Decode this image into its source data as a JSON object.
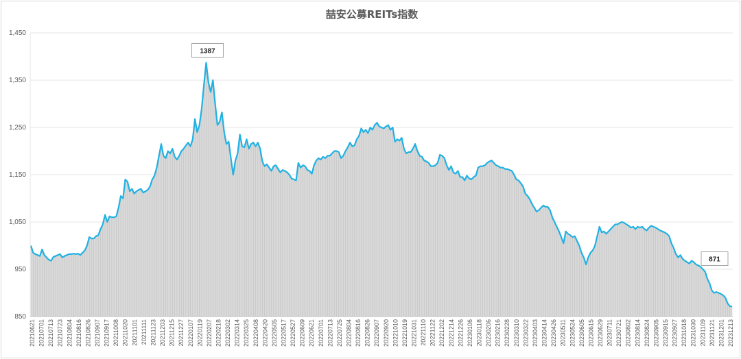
{
  "chart_data": {
    "type": "area",
    "title": "喆安公募REITs指数",
    "xlabel": "",
    "ylabel": "",
    "ylim": [
      850,
      1450
    ],
    "y_ticks": [
      850,
      950,
      1050,
      1150,
      1250,
      1350,
      1450
    ],
    "y_tick_labels": [
      "850",
      "950",
      "1,050",
      "1,150",
      "1,250",
      "1,350",
      "1,450"
    ],
    "grid": true,
    "legend": "none",
    "colors": {
      "line": "#21b1e3",
      "fill": "#d9d9d9",
      "grid": "#e6e6e6",
      "drop_lines": "#a6a6a6"
    },
    "x_tick_labels": [
      "20210621",
      "20210701",
      "20210713",
      "20210723",
      "20210804",
      "20210816",
      "20210826",
      "20210907",
      "20210917",
      "20211008",
      "20211020",
      "20211101",
      "20211111",
      "20211123",
      "20211203",
      "20211215",
      "20211227",
      "20220107",
      "20220119",
      "20220207",
      "20220218",
      "20220302",
      "20220314",
      "20220325",
      "20220408",
      "20220420",
      "20220505",
      "20220517",
      "20220527",
      "20220609",
      "20220621",
      "20220701",
      "20220713",
      "20220725",
      "20220804",
      "20220816",
      "20220826",
      "20220907",
      "20220920",
      "20221010",
      "20221019",
      "20221031",
      "20221110",
      "20221122",
      "20221202",
      "20221214",
      "20221226",
      "20230106",
      "20230118",
      "20230206",
      "20230216",
      "20230228",
      "20230310",
      "20230322",
      "20230403",
      "20230414",
      "20230426",
      "20230511",
      "20230524",
      "20230605",
      "20230615",
      "20230629",
      "20230711",
      "20230721",
      "20230802",
      "20230814",
      "20230824",
      "20230905",
      "20230915",
      "20230927",
      "20231018",
      "20231030",
      "20231109",
      "20231121",
      "20231201",
      "20231213"
    ],
    "series": [
      {
        "values": [
          1000,
          985,
          982,
          980,
          978,
          992,
          980,
          975,
          970,
          968,
          976,
          978,
          980,
          982,
          975,
          978,
          980,
          982,
          982,
          983,
          982,
          983,
          980,
          985,
          990,
          1000,
          1018,
          1015,
          1015,
          1020,
          1022,
          1035,
          1045,
          1065,
          1050,
          1062,
          1060,
          1060,
          1062,
          1080,
          1105,
          1100,
          1140,
          1135,
          1115,
          1120,
          1110,
          1115,
          1118,
          1120,
          1112,
          1115,
          1118,
          1125,
          1140,
          1148,
          1165,
          1190,
          1215,
          1190,
          1185,
          1200,
          1195,
          1205,
          1188,
          1182,
          1190,
          1200,
          1205,
          1212,
          1218,
          1210,
          1225,
          1268,
          1240,
          1255,
          1290,
          1340,
          1387,
          1345,
          1325,
          1350,
          1300,
          1255,
          1262,
          1282,
          1240,
          1215,
          1220,
          1185,
          1150,
          1180,
          1195,
          1235,
          1210,
          1208,
          1225,
          1205,
          1215,
          1218,
          1210,
          1218,
          1205,
          1178,
          1168,
          1172,
          1165,
          1158,
          1168,
          1170,
          1162,
          1155,
          1160,
          1158,
          1155,
          1150,
          1142,
          1140,
          1138,
          1175,
          1165,
          1170,
          1168,
          1160,
          1158,
          1152,
          1170,
          1180,
          1185,
          1182,
          1188,
          1185,
          1190,
          1190,
          1195,
          1200,
          1200,
          1198,
          1185,
          1190,
          1200,
          1208,
          1218,
          1210,
          1212,
          1225,
          1232,
          1248,
          1240,
          1245,
          1238,
          1250,
          1245,
          1255,
          1260,
          1252,
          1250,
          1248,
          1252,
          1255,
          1245,
          1250,
          1220,
          1225,
          1222,
          1228,
          1205,
          1195,
          1198,
          1198,
          1205,
          1215,
          1200,
          1190,
          1188,
          1180,
          1178,
          1175,
          1168,
          1168,
          1170,
          1175,
          1192,
          1190,
          1185,
          1170,
          1160,
          1168,
          1155,
          1152,
          1158,
          1145,
          1145,
          1138,
          1148,
          1142,
          1140,
          1145,
          1148,
          1165,
          1168,
          1168,
          1170,
          1175,
          1178,
          1180,
          1175,
          1170,
          1168,
          1165,
          1165,
          1162,
          1162,
          1160,
          1158,
          1150,
          1140,
          1138,
          1132,
          1125,
          1110,
          1105,
          1098,
          1088,
          1080,
          1072,
          1075,
          1080,
          1085,
          1082,
          1082,
          1075,
          1060,
          1050,
          1040,
          1030,
          1018,
          1005,
          1030,
          1025,
          1022,
          1018,
          1020,
          1010,
          1000,
          985,
          975,
          960,
          975,
          985,
          990,
          1000,
          1020,
          1040,
          1028,
          1030,
          1025,
          1030,
          1035,
          1040,
          1045,
          1045,
          1048,
          1050,
          1048,
          1045,
          1042,
          1038,
          1040,
          1035,
          1040,
          1038,
          1040,
          1035,
          1032,
          1038,
          1042,
          1040,
          1038,
          1035,
          1032,
          1030,
          1028,
          1025,
          1020,
          1005,
          995,
          982,
          975,
          980,
          972,
          968,
          965,
          962,
          968,
          965,
          960,
          958,
          955,
          950,
          945,
          930,
          920,
          905,
          900,
          902,
          900,
          898,
          895,
          890,
          878,
          872,
          871
        ]
      }
    ],
    "annotations": [
      {
        "label": "1387",
        "value": 1387
      },
      {
        "label": "871",
        "value": 871
      }
    ]
  }
}
